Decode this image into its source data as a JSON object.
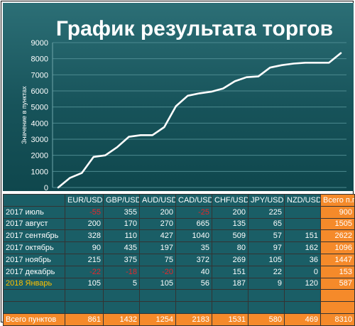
{
  "chart_data": {
    "type": "line",
    "title": "График результата торгов",
    "ylabel": "Значение в пунктах",
    "xlabel": "",
    "ylim": [
      0,
      9000
    ],
    "yticks": [
      0,
      1000,
      2000,
      3000,
      4000,
      5000,
      6000,
      7000,
      8000,
      9000
    ],
    "grid": true,
    "y": [
      0,
      600,
      900,
      1900,
      2000,
      2500,
      3150,
      3250,
      3250,
      3750,
      5050,
      5700,
      5850,
      5950,
      6150,
      6600,
      6850,
      6900,
      7450,
      7600,
      7700,
      7750,
      7750,
      7750,
      8350
    ],
    "series_color": "#ffffff"
  },
  "table": {
    "columns": [
      "",
      "EUR/USD",
      "GBP/USD",
      "AUD/USD",
      "CAD/USD",
      "CHF/USD",
      "JPY/USD",
      "NZD/USD",
      "Всего п.п."
    ],
    "rows": [
      {
        "label": "2017 июль",
        "cells": [
          "-55",
          "355",
          "200",
          "-25",
          "200",
          "225",
          ""
        ],
        "total": "900",
        "neg": [
          0,
          3
        ],
        "highlight": false
      },
      {
        "label": "2017 август",
        "cells": [
          "200",
          "170",
          "270",
          "665",
          "135",
          "65",
          ""
        ],
        "total": "1505",
        "neg": [],
        "highlight": false
      },
      {
        "label": "2017 сентябрь",
        "cells": [
          "328",
          "110",
          "427",
          "1040",
          "509",
          "57",
          "151"
        ],
        "total": "2622",
        "neg": [],
        "highlight": false
      },
      {
        "label": "2017 октябрь",
        "cells": [
          "90",
          "435",
          "197",
          "35",
          "80",
          "97",
          "162"
        ],
        "total": "1096",
        "neg": [],
        "highlight": false
      },
      {
        "label": "2017 ноябрь",
        "cells": [
          "215",
          "375",
          "75",
          "372",
          "269",
          "105",
          "36"
        ],
        "total": "1447",
        "neg": [],
        "highlight": false
      },
      {
        "label": "2017 декабрь",
        "cells": [
          "-22",
          "-18",
          "-20",
          "40",
          "151",
          "22",
          "0"
        ],
        "total": "153",
        "neg": [
          0,
          1,
          2
        ],
        "highlight": false
      },
      {
        "label": "2018 Январь",
        "cells": [
          "105",
          "5",
          "105",
          "56",
          "187",
          "9",
          "120"
        ],
        "total": "587",
        "neg": [],
        "highlight": true
      },
      {
        "label": "",
        "cells": [
          "",
          "",
          "",
          "",
          "",
          "",
          ""
        ],
        "total": "",
        "neg": [],
        "highlight": false
      },
      {
        "label": "",
        "cells": [
          "",
          "",
          "",
          "",
          "",
          "",
          ""
        ],
        "total": "",
        "neg": [],
        "highlight": false
      }
    ],
    "footer": {
      "label": "Всего пунктов",
      "cells": [
        "861",
        "1432",
        "1254",
        "2183",
        "1531",
        "580",
        "469"
      ],
      "total": "8310"
    }
  }
}
